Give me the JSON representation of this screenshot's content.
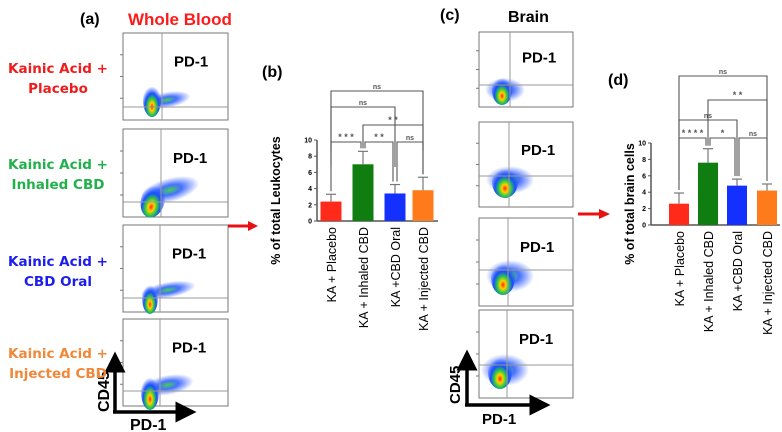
{
  "panels": {
    "a_label": "(a)",
    "a_title": "Whole Blood",
    "b_label": "(b)",
    "c_label": "(c)",
    "c_title": "Brain",
    "d_label": "(d)"
  },
  "colors": {
    "title_red": "#ff1a1a",
    "arrow": "#e81010",
    "placebo": "#ff2a1a",
    "inhaled": "#0f7d0f",
    "oral": "#1430ff",
    "injected": "#ff7a1a"
  },
  "row_labels": [
    {
      "line1": "Kainic Acid +",
      "line2": "Placebo",
      "color": "#ee1c1c"
    },
    {
      "line1": "Kainic Acid +",
      "line2": "Inhaled CBD",
      "color": "#22b04b"
    },
    {
      "line1": "Kainic Acid +",
      "line2": "CBD Oral",
      "color": "#1c1cee"
    },
    {
      "line1": "Kainic Acid +",
      "line2": "Injected CBD",
      "color": "#f0883a"
    }
  ],
  "flow": {
    "gate_label": "PD-1",
    "x_axis": "PD-1",
    "y_axis": "CD45"
  },
  "chart_data": [
    {
      "type": "bar",
      "panel": "(b)",
      "ylabel": "% of total Leukocytes",
      "categories": [
        "KA + Placebo",
        "KA + Inhaled CBD",
        "KA +CBD Oral",
        "KA + Injected CBD"
      ],
      "values": [
        2.4,
        7.0,
        3.4,
        3.8
      ],
      "error_upper": [
        3.3,
        8.6,
        4.5,
        5.4
      ],
      "ylim": [
        0,
        10
      ],
      "yticks": [
        "0",
        "2",
        "4",
        "6",
        "8",
        "10"
      ],
      "significance": [
        {
          "pair": [
            0,
            3
          ],
          "label": "ns"
        },
        {
          "pair": [
            0,
            2
          ],
          "label": "ns"
        },
        {
          "pair": [
            1,
            3
          ],
          "label": "* *"
        },
        {
          "pair": [
            0,
            1
          ],
          "label": "* * *"
        },
        {
          "pair": [
            1,
            2
          ],
          "label": "* *"
        },
        {
          "pair": [
            2,
            3
          ],
          "label": "ns"
        }
      ]
    },
    {
      "type": "bar",
      "panel": "(d)",
      "ylabel": "% of total brain cells",
      "categories": [
        "KA + Placebo",
        "KA + Inhaled CBD",
        "KA +CBD Oral",
        "KA + Injected CBD"
      ],
      "values": [
        2.6,
        7.6,
        4.8,
        4.2
      ],
      "error_upper": [
        3.9,
        9.3,
        5.6,
        5.0
      ],
      "ylim": [
        0,
        10
      ],
      "yticks": [
        "0",
        "2",
        "4",
        "6",
        "8",
        "10"
      ],
      "significance": [
        {
          "pair": [
            0,
            3
          ],
          "label": "ns"
        },
        {
          "pair": [
            1,
            3
          ],
          "label": "* *"
        },
        {
          "pair": [
            0,
            2
          ],
          "label": "ns"
        },
        {
          "pair": [
            0,
            1
          ],
          "label": "* * * *"
        },
        {
          "pair": [
            1,
            2
          ],
          "label": "*"
        },
        {
          "pair": [
            2,
            3
          ],
          "label": "ns"
        }
      ]
    }
  ]
}
